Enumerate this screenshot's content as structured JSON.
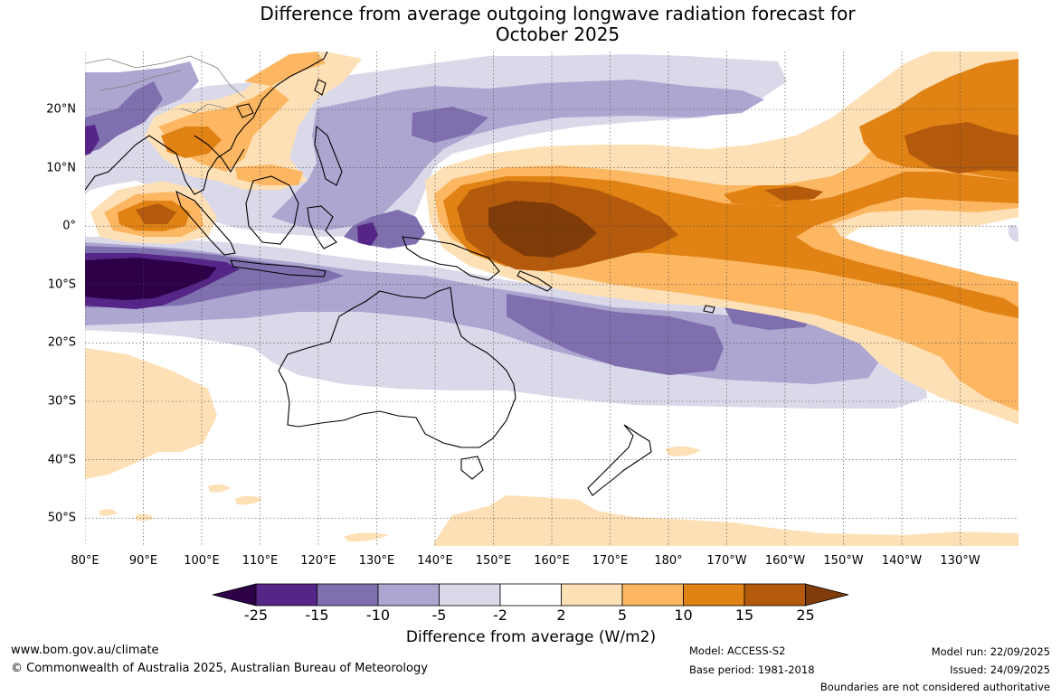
{
  "title": {
    "line1": "Difference from average outgoing longwave radiation forecast for",
    "line2": "October 2025"
  },
  "axes": {
    "longitudes": [
      "80°E",
      "90°E",
      "100°E",
      "110°E",
      "120°E",
      "130°E",
      "140°E",
      "150°E",
      "160°E",
      "170°E",
      "180°",
      "170°W",
      "160°W",
      "150°W",
      "140°W",
      "130°W"
    ],
    "latitudes": [
      "20°N",
      "10°N",
      "0°",
      "10°S",
      "20°S",
      "30°S",
      "40°S",
      "50°S"
    ]
  },
  "colorbar": {
    "ticks": [
      "-25",
      "-15",
      "-10",
      "-5",
      "-2",
      "2",
      "5",
      "10",
      "15",
      "25"
    ],
    "colors": [
      "#2d0047",
      "#552687",
      "#7f6fae",
      "#ada6d0",
      "#d9d9ea",
      "#ffffff",
      "#fee0b6",
      "#fdb762",
      "#e08214",
      "#b45a0c",
      "#7f3b08"
    ],
    "title": "Difference from average (W/m2)"
  },
  "footer": {
    "website": "www.bom.gov.au/climate",
    "copyright": "© Commonwealth of Australia 2025, Australian Bureau of Meteorology",
    "model": "Model: ACCESS-S2",
    "base_period": "Base period: 1981-2018",
    "model_run": "Model run: 22/09/2025",
    "issued": "Issued: 24/09/2025",
    "disclaimer": "Boundaries are not considered authoritative"
  }
}
